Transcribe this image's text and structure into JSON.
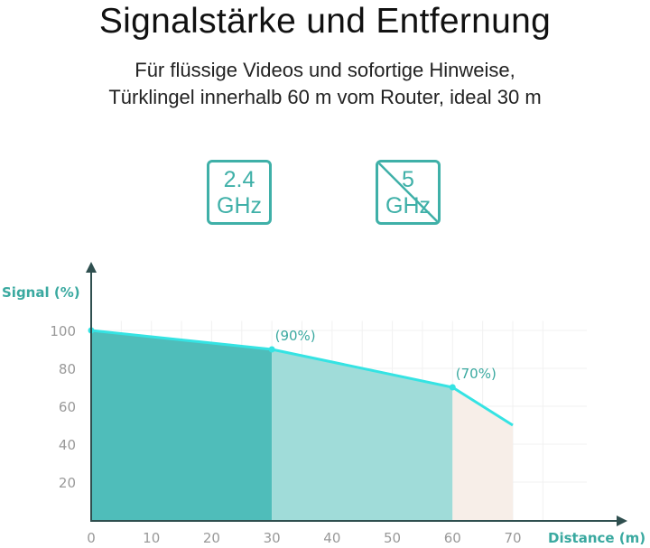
{
  "header": {
    "title": "Signalstärke und Entfernung",
    "subtitle_line1": "Für flüssige Videos und sofortige Hinweise,",
    "subtitle_line2": "Türklingel innerhalb 60 m vom Router, ideal 30 m"
  },
  "badges": [
    {
      "line1": "2.4",
      "line2": "GHz",
      "crossed": false
    },
    {
      "line1": "5",
      "line2": "GHz",
      "crossed": true
    }
  ],
  "colors": {
    "accent": "#3fb0a8",
    "line": "#35e3e3",
    "zone1": "#4fbdba",
    "zone2": "#a0dcd9",
    "zone3": "#f7eee8",
    "axis": "#2f4f4f"
  },
  "chart_data": {
    "type": "area",
    "xlabel": "Distance (m)",
    "ylabel": "Signal (%)",
    "x": [
      0,
      30,
      60,
      70
    ],
    "values": [
      100,
      90,
      70,
      50
    ],
    "xlim": [
      0,
      70
    ],
    "ylim": [
      0,
      100
    ],
    "xticks": [
      "0",
      "10",
      "20",
      "30",
      "40",
      "50",
      "60",
      "70"
    ],
    "yticks": [
      "20",
      "40",
      "60",
      "80",
      "100"
    ],
    "annotations": [
      {
        "x": 30,
        "y": 90,
        "text": "(90%)"
      },
      {
        "x": 60,
        "y": 70,
        "text": "(70%)"
      }
    ],
    "zones": [
      {
        "from": 0,
        "to": 30
      },
      {
        "from": 30,
        "to": 60
      },
      {
        "from": 60,
        "to": 70
      }
    ],
    "grid": true
  }
}
